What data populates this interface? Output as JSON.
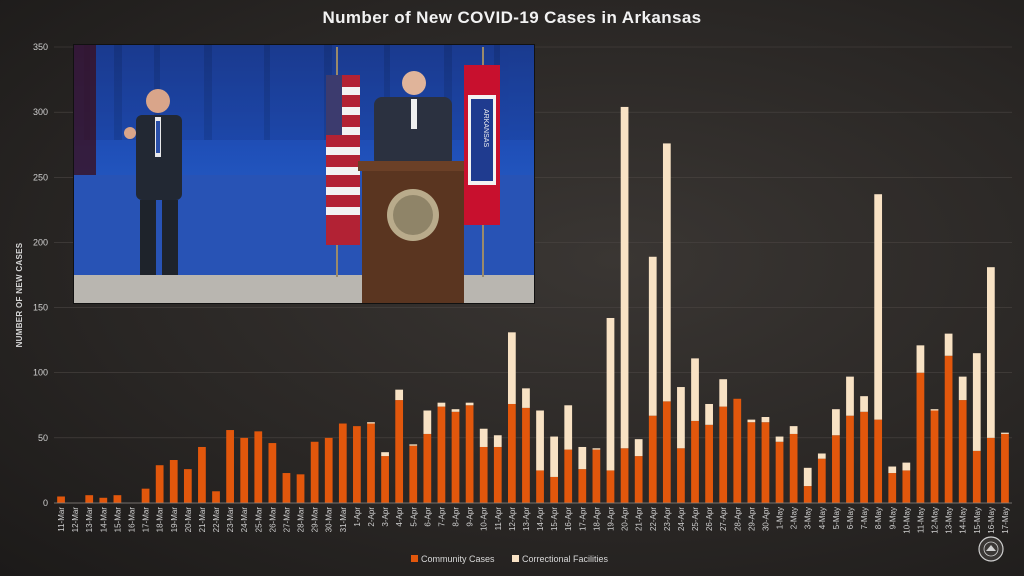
{
  "title": "Number of New COVID-19 Cases in Arkansas",
  "colors": {
    "community": "#e2570c",
    "correctional": "#f8e2c4",
    "background": "#2b2826",
    "grid": "#4a4542",
    "text": "#cfcfcf"
  },
  "inset_video": {
    "description_icon": "press-briefing-video",
    "flag_text": "ARKANSAS"
  },
  "chart_data": {
    "type": "bar",
    "stacked": true,
    "ylabel": "NUMBER OF NEW CASES",
    "xlabel": "",
    "ylim": [
      0,
      350
    ],
    "yticks": [
      0,
      50,
      100,
      150,
      200,
      250,
      300,
      350
    ],
    "grid": true,
    "legend_position": "bottom",
    "categories": [
      "11-Mar",
      "12-Mar",
      "13-Mar",
      "14-Mar",
      "15-Mar",
      "16-Mar",
      "17-Mar",
      "18-Mar",
      "19-Mar",
      "20-Mar",
      "21-Mar",
      "22-Mar",
      "23-Mar",
      "24-Mar",
      "25-Mar",
      "26-Mar",
      "27-Mar",
      "28-Mar",
      "29-Mar",
      "30-Mar",
      "31-Mar",
      "1-Apr",
      "2-Apr",
      "3-Apr",
      "4-Apr",
      "5-Apr",
      "6-Apr",
      "7-Apr",
      "8-Apr",
      "9-Apr",
      "10-Apr",
      "11-Apr",
      "12-Apr",
      "13-Apr",
      "14-Apr",
      "15-Apr",
      "16-Apr",
      "17-Apr",
      "18-Apr",
      "19-Apr",
      "20-Apr",
      "21-Apr",
      "22-Apr",
      "23-Apr",
      "24-Apr",
      "25-Apr",
      "26-Apr",
      "27-Apr",
      "28-Apr",
      "29-Apr",
      "30-Apr",
      "1-May",
      "2-May",
      "3-May",
      "4-May",
      "5-May",
      "6-May",
      "7-May",
      "8-May",
      "9-May",
      "10-May",
      "11-May",
      "12-May",
      "13-May",
      "14-May",
      "15-May",
      "16-May",
      "17-May"
    ],
    "series": [
      {
        "name": "Community Cases",
        "values": [
          5,
          0,
          6,
          4,
          6,
          0,
          11,
          29,
          33,
          26,
          43,
          9,
          56,
          50,
          55,
          46,
          23,
          22,
          47,
          50,
          61,
          59,
          61,
          36,
          79,
          44,
          53,
          74,
          70,
          75,
          43,
          43,
          76,
          73,
          25,
          20,
          41,
          26,
          41,
          25,
          42,
          36,
          67,
          78,
          42,
          63,
          60,
          74,
          80,
          62,
          62,
          47,
          53,
          13,
          34,
          52,
          67,
          70,
          64,
          23,
          25,
          100,
          71,
          113,
          79,
          40,
          50,
          53
        ]
      },
      {
        "name": "Correctional Facilities",
        "values": [
          0,
          0,
          0,
          0,
          0,
          0,
          0,
          0,
          0,
          0,
          0,
          0,
          0,
          0,
          0,
          0,
          0,
          0,
          0,
          0,
          0,
          0,
          1,
          3,
          8,
          1,
          18,
          3,
          2,
          2,
          14,
          9,
          55,
          15,
          46,
          31,
          34,
          17,
          1,
          117,
          262,
          13,
          122,
          198,
          47,
          48,
          16,
          21,
          0,
          2,
          4,
          4,
          6,
          14,
          4,
          20,
          30,
          12,
          173,
          5,
          6,
          21,
          1,
          17,
          18,
          75,
          131,
          1
        ]
      }
    ],
    "legend": [
      "Community Cases",
      "Correctional Facilities"
    ]
  }
}
